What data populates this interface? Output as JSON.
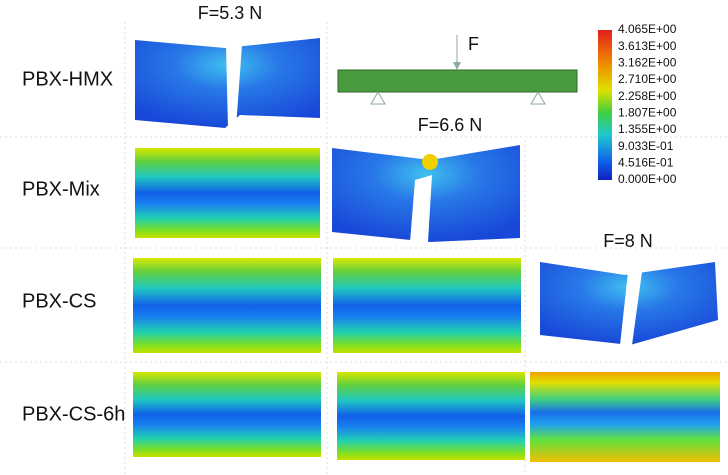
{
  "rows": [
    "PBX-HMX",
    "PBX-Mix",
    "PBX-CS",
    "PBX-CS-6h"
  ],
  "forces": [
    "F=5.3 N",
    "F=6.6 N",
    "F=8 N"
  ],
  "diagram": {
    "label": "F"
  },
  "colorbar": {
    "labels": [
      "4.065E+00",
      "3.613E+00",
      "3.162E+00",
      "2.710E+00",
      "2.258E+00",
      "1.807E+00",
      "1.355E+00",
      "9.033E-01",
      "4.516E-01",
      "0.000E+00"
    ]
  }
}
